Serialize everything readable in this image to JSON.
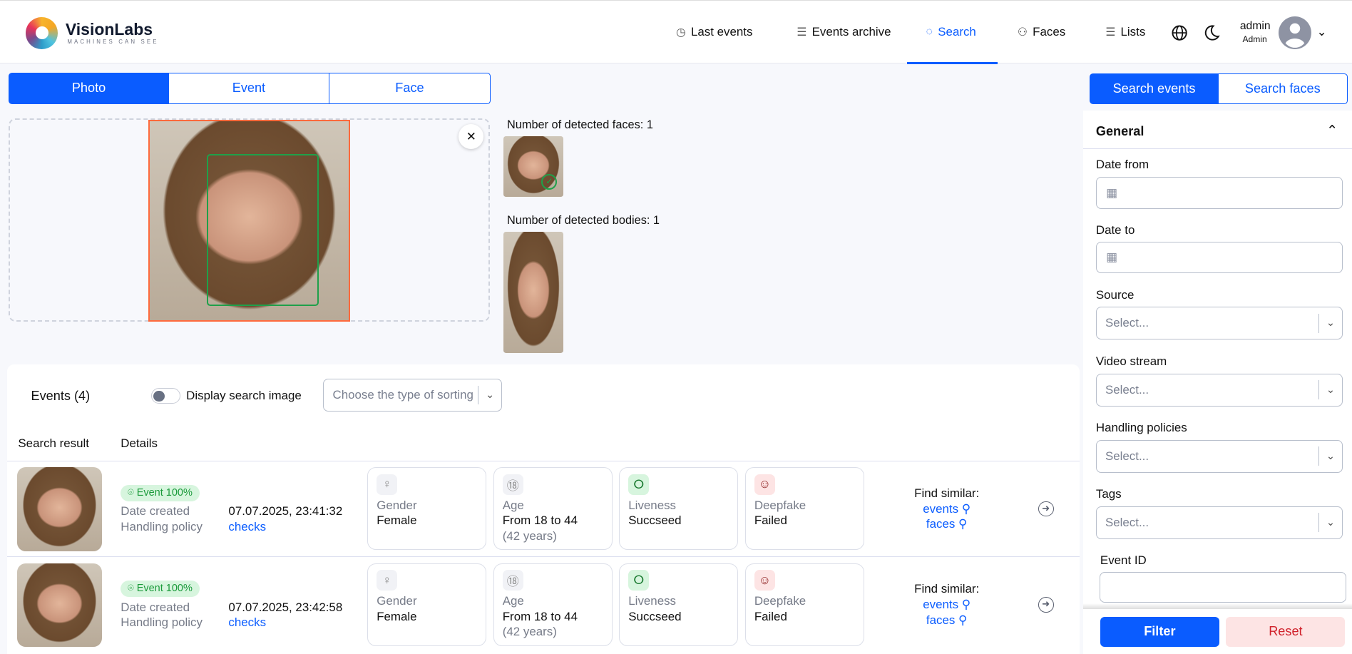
{
  "header": {
    "brand": "VisionLabs",
    "tagline": "MACHINES CAN SEE",
    "nav": [
      {
        "label": "Last events",
        "icon": "clock-icon"
      },
      {
        "label": "Events archive",
        "icon": "list-icon"
      },
      {
        "label": "Search",
        "icon": "target-icon",
        "active": true
      },
      {
        "label": "Faces",
        "icon": "users-icon"
      },
      {
        "label": "Lists",
        "icon": "list-icon"
      }
    ],
    "user": {
      "name": "admin",
      "role": "Admin"
    }
  },
  "search_tabs": [
    "Photo",
    "Event",
    "Face"
  ],
  "detect": {
    "faces_label": "Number of detected faces: 1",
    "bodies_label": "Number of detected bodies: 1"
  },
  "events": {
    "title": "Events (4)",
    "toggle_label": "Display search image",
    "toggle_on": false,
    "sort_placeholder": "Choose the type of sorting",
    "col_result": "Search result",
    "col_details": "Details",
    "rows": [
      {
        "badge": "Event 100%",
        "date_label": "Date created",
        "date": "07.07.2025, 23:41:32",
        "policy_label": "Handling policy",
        "policy": "checks",
        "gender_label": "Gender",
        "gender": "Female",
        "age_label": "Age",
        "age": "From 18 to 44",
        "age_sub": "(42 years)",
        "liveness_label": "Liveness",
        "liveness": "Succseed",
        "deepfake_label": "Deepfake",
        "deepfake": "Failed",
        "find_label": "Find similar:",
        "find_events": "events",
        "find_faces": "faces"
      },
      {
        "badge": "Event 100%",
        "date_label": "Date created",
        "date": "07.07.2025, 23:42:58",
        "policy_label": "Handling policy",
        "policy": "checks",
        "gender_label": "Gender",
        "gender": "Female",
        "age_label": "Age",
        "age": "From 18 to 44",
        "age_sub": "(42 years)",
        "liveness_label": "Liveness",
        "liveness": "Succseed",
        "deepfake_label": "Deepfake",
        "deepfake": "Failed",
        "find_label": "Find similar:",
        "find_events": "events",
        "find_faces": "faces"
      }
    ]
  },
  "panel": {
    "tabs": [
      "Search events",
      "Search faces"
    ],
    "section": "General",
    "date_from": "Date from",
    "date_to": "Date to",
    "source": "Source",
    "video_stream": "Video stream",
    "handling_policies": "Handling policies",
    "tags": "Tags",
    "select_placeholder": "Select...",
    "event_id": "Event ID",
    "filter": "Filter",
    "reset": "Reset"
  },
  "colors": {
    "accent": "#0a5cff",
    "success": "#1a9a3a",
    "danger": "#d0202a",
    "face_box": "#1fa04a",
    "photo_border": "#ff6a3d"
  }
}
